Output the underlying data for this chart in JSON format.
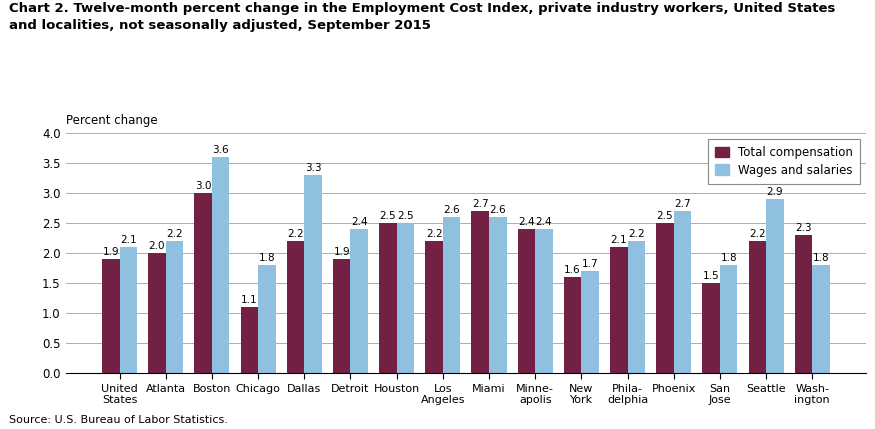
{
  "title_line1": "Chart 2. Twelve-month percent change in the Employment Cost Index, private industry workers, United States",
  "title_line2": "and localities, not seasonally adjusted, September 2015",
  "ylabel": "Percent change",
  "source": "Source: U.S. Bureau of Labor Statistics.",
  "ylim": [
    0.0,
    4.0
  ],
  "yticks": [
    0.0,
    0.5,
    1.0,
    1.5,
    2.0,
    2.5,
    3.0,
    3.5,
    4.0
  ],
  "categories": [
    "United\nStates",
    "Atlanta",
    "Boston",
    "Chicago",
    "Dallas",
    "Detroit",
    "Houston",
    "Los\nAngeles",
    "Miami",
    "Minne-\napolis",
    "New\nYork",
    "Phila-\ndelphia",
    "Phoenix",
    "San\nJose",
    "Seattle",
    "Wash-\nington"
  ],
  "total_compensation": [
    1.9,
    2.0,
    3.0,
    1.1,
    2.2,
    1.9,
    2.5,
    2.2,
    2.7,
    2.4,
    1.6,
    2.1,
    2.5,
    1.5,
    2.2,
    2.3
  ],
  "wages_salaries": [
    2.1,
    2.2,
    3.6,
    1.8,
    3.3,
    2.4,
    2.5,
    2.6,
    2.6,
    2.4,
    1.7,
    2.2,
    2.7,
    1.8,
    2.9,
    1.8
  ],
  "color_total": "#722044",
  "color_wages": "#90c0e0",
  "legend_labels": [
    "Total compensation",
    "Wages and salaries"
  ],
  "bar_width": 0.38,
  "figsize": [
    8.75,
    4.29
  ],
  "dpi": 100
}
